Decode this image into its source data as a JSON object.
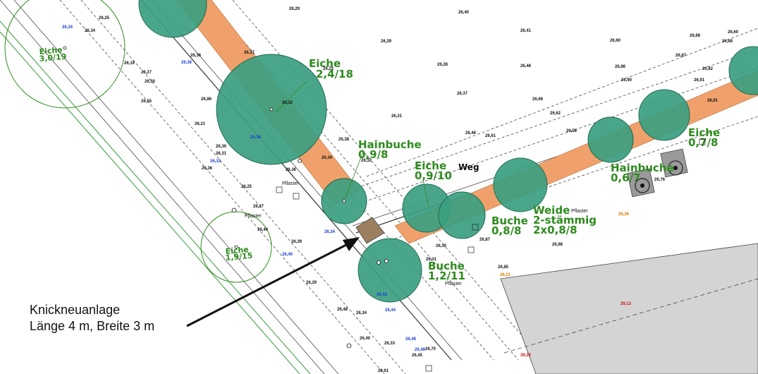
{
  "map": {
    "annotation": {
      "line1": "Knickneuanlage",
      "line2": "Länge 4 m, Breite 3 m"
    },
    "path_label": "Weg",
    "pflaster_label": "Pflaster",
    "trees": [
      {
        "species": "Eiche",
        "size": "3,0/19",
        "style": "outline"
      },
      {
        "species": "Eiche",
        "size": "2,4/18",
        "style": "filled"
      },
      {
        "species": "Hainbuche",
        "size": "0,9/8",
        "style": "filled"
      },
      {
        "species": "Eiche",
        "size": "0,9/10",
        "style": "filled"
      },
      {
        "species": "Buche",
        "size": "0,8/8",
        "style": "filled"
      },
      {
        "species": "Weide",
        "size": "2-stämmig",
        "extra": "2x0,8/8",
        "style": "filled"
      },
      {
        "species": "Buche",
        "size": "1,2/11",
        "style": "filled"
      },
      {
        "species": "Hainbuche",
        "size": "0,6/7",
        "style": "filled"
      },
      {
        "species": "Eiche",
        "size": "0,7/8",
        "style": "filled"
      },
      {
        "species": "Eiche",
        "size": "1,9/15",
        "style": "outline"
      }
    ],
    "spot_heights": [
      "26,29",
      "26,40",
      "26,41",
      "26,60",
      "26,25",
      "26,34",
      "26,29",
      "26,28",
      "26,48",
      "26,37",
      "26,23",
      "26,19",
      "26,27",
      "26,32",
      "26,31",
      "26,37",
      "26,36",
      "26,66",
      "26,62",
      "26,58",
      "26,50",
      "26,55",
      "26,86",
      "26,46",
      "26,61",
      "26,34",
      "26,38",
      "26,32",
      "26,36",
      "26,25",
      "26,31",
      "26,30",
      "26,21",
      "26,27",
      "26,44",
      "26,39",
      "26,36",
      "26,40",
      "26,48",
      "26,34",
      "26,33",
      "26,61",
      "26,45",
      "26,29",
      "26,31",
      "26,30",
      "26,70",
      "26,88",
      "26,87",
      "26,85",
      "26,76",
      "26,86",
      "26,90",
      "26,91",
      "26,82",
      "26,67",
      "26,68",
      "26,60",
      "26,81",
      "26,68"
    ],
    "spot_heights_blue": [
      "26,34",
      "26,36",
      "26,38",
      "26,33",
      "26,34",
      "26,40",
      "26,42",
      "26,44",
      "26,48",
      "26,48"
    ],
    "spot_heights_red": [
      "39,13",
      "39,23"
    ],
    "spot_heights_orange": [
      "26,21",
      "26,26"
    ],
    "colors": {
      "tree_fill": "#3b9e80",
      "tree_stroke": "#1f6b4f",
      "hedge_strip": "#f0a16b",
      "new_planting": "#9b7f5e",
      "building": "#d4d4d4",
      "label_green": "#2e8b1e"
    }
  }
}
